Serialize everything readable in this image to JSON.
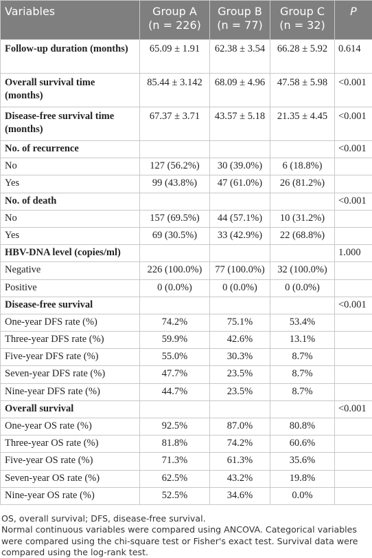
{
  "table": {
    "header": {
      "variables": "Variables",
      "groups": [
        {
          "name": "Group A",
          "n": "(n = 226)"
        },
        {
          "name": "Group B",
          "n": "(n = 77)"
        },
        {
          "name": "Group C",
          "n": "(n = 32)"
        }
      ],
      "p": "P"
    },
    "rows": [
      [
        "Follow-up duration (months)",
        "65.09 ± 1.91",
        "62.38 ± 3.54",
        "66.28 ± 5.92",
        "0.614"
      ],
      [
        "Overall survival time (months)",
        "85.44 ± 3.142",
        "68.09 ± 4.96",
        "47.58 ± 5.98",
        "<0.001"
      ],
      [
        "Disease-free survival time (months)",
        "67.37 ± 3.71",
        "43.57 ± 5.18",
        "21.35 ± 4.45",
        "<0.001"
      ],
      [
        "No. of recurrence",
        null,
        null,
        null,
        "<0.001"
      ],
      [
        "No",
        "127 (56.2%)",
        "30 (39.0%)",
        "6 (18.8%)",
        null
      ],
      [
        "Yes",
        "99 (43.8%)",
        "47 (61.0%)",
        "26 (81.2%)",
        null
      ],
      [
        "No. of death",
        null,
        null,
        null,
        "<0.001"
      ],
      [
        "No",
        "157 (69.5%)",
        "44 (57.1%)",
        "10 (31.2%)",
        null
      ],
      [
        "Yes",
        "69 (30.5%)",
        "33 (42.9%)",
        "22 (68.8%)",
        null
      ],
      [
        "HBV-DNA level (copies/ml)",
        null,
        null,
        null,
        "1.000"
      ],
      [
        "Negative",
        "226 (100.0%)",
        "77 (100.0%)",
        "32 (100.0%)",
        null
      ],
      [
        "Positive",
        "0 (0.0%)",
        "0 (0.0%)",
        "0 (0.0%)",
        null
      ],
      [
        "Disease-free survival",
        null,
        null,
        null,
        "<0.001"
      ],
      [
        "One-year DFS rate (%)",
        "74.2%",
        "75.1%",
        "53.4%",
        null
      ],
      [
        "Three-year DFS rate (%)",
        "59.9%",
        "42.6%",
        "13.1%",
        null
      ],
      [
        "Five-year DFS rate (%)",
        "55.0%",
        "30.3%",
        "8.7%",
        null
      ],
      [
        "Seven-year DFS rate (%)",
        "47.7%",
        "23.5%",
        "8.7%",
        null
      ],
      [
        "Nine-year DFS rate (%)",
        "44.7%",
        "23.5%",
        "8.7%",
        null
      ],
      [
        "Overall survival",
        null,
        null,
        null,
        "<0.001"
      ],
      [
        "One-year OS rate (%)",
        "92.5%",
        "87.0%",
        "80.8%",
        null
      ],
      [
        "Three-year OS rate (%)",
        "81.8%",
        "74.2%",
        "60.6%",
        null
      ],
      [
        "Five-year OS rate (%)",
        "71.3%",
        "61.3%",
        "35.6%",
        null
      ],
      [
        "Seven-year OS rate (%)",
        "62.5%",
        "43.2%",
        "19.8%",
        null
      ],
      [
        "Nine-year OS rate (%)",
        "52.5%",
        "34.6%",
        "0.0%",
        null
      ]
    ]
  },
  "footnotes": [
    "OS, overall survival; DFS, disease-free survival.",
    "Normal continuous variables were compared using ANCOVA. Categorical variables were compared using the chi-square test or Fisher's exact test. Survival data were compared using the log-rank test."
  ]
}
